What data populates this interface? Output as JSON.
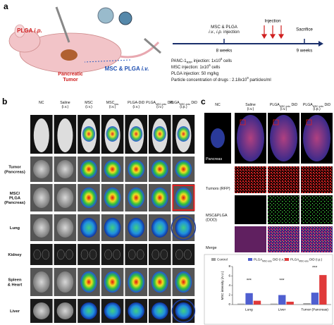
{
  "panel_a": {
    "letter": "a",
    "plga_ip": [
      [
        "PLGA ",
        {
          "t": "i.p.",
          "s": "i"
        }
      ]
    ],
    "msc_plga_iv": [
      [
        "MSC & PLGA ",
        {
          "t": "i.v.",
          "s": "i"
        }
      ]
    ],
    "tumor": [
      [
        "Pancreatic"
      ],
      [
        "Tumor"
      ]
    ],
    "timeline": {
      "treatment": [
        [
          "MSC & PLGA"
        ],
        [
          {
            "t": "i.v.",
            "s": "i"
          },
          ", ",
          {
            "t": "i.p.",
            "s": "i"
          },
          " injection"
        ]
      ],
      "start": "8 weeks",
      "injection": "Injection",
      "sacrifice": "Sacrifice",
      "end": "9 weeks"
    },
    "info": [
      [
        [
          "PANC-1",
          {
            "t": "RFP",
            "s": "sub"
          },
          " injection: 1x10",
          {
            "t": "6",
            "s": "sup"
          },
          " cells"
        ]
      ],
      [
        [
          "MSC injection: 1x10",
          {
            "t": "6",
            "s": "sup"
          },
          " cells"
        ]
      ],
      [
        [
          "PLGA injection:  50 mg/kg"
        ]
      ],
      [
        [
          "Particle concentration of drugs : 2.18x10",
          {
            "t": "9",
            "s": "sup"
          },
          " particles/ml"
        ]
      ]
    ]
  },
  "panel_b": {
    "letter": "b",
    "columns": [
      [
        [
          "NC"
        ]
      ],
      [
        [
          "Saline"
        ],
        [
          "(i.v.)"
        ]
      ],
      [
        [
          "MSC"
        ],
        [
          "(i.v.)"
        ]
      ],
      [
        [
          "MSC",
          {
            "t": "edu",
            "s": "sub"
          }
        ],
        [
          "(i.v.)"
        ]
      ],
      [
        [
          "PLGA-DiD"
        ],
        [
          "(i.v.)"
        ]
      ],
      [
        [
          "PLGA",
          {
            "t": "MSC-edu",
            "s": "sub"
          },
          " DiD"
        ],
        [
          "(i.v.)"
        ]
      ],
      [
        [
          "PLGA",
          {
            "t": "MSC-edu",
            "s": "sub"
          },
          " DiD"
        ],
        [
          "(i.p.)"
        ]
      ]
    ],
    "rows": [
      [
        [
          "Tumor"
        ],
        [
          "(Pancreas)"
        ]
      ],
      [
        [
          "MSC/"
        ],
        [
          "PLGA"
        ],
        [
          "(Pancreas)"
        ]
      ],
      [
        [
          "Lung"
        ]
      ],
      [
        [
          "Kidney"
        ]
      ],
      [
        [
          "Spleen"
        ],
        [
          "& Heart"
        ]
      ],
      [
        [
          "Liver"
        ]
      ]
    ]
  },
  "panel_c": {
    "letter": "c",
    "columns": [
      [
        [
          "NC"
        ]
      ],
      [
        [
          "Saline"
        ],
        [
          "(i.v.)"
        ]
      ],
      [
        [
          "PLGA",
          {
            "t": "MSC-edu",
            "s": "sub"
          },
          " DiD"
        ],
        [
          "(i.v.)"
        ]
      ],
      [
        [
          "PLGA",
          {
            "t": "MSC-edu",
            "s": "sub"
          },
          " DiD"
        ],
        [
          "(i.p.)"
        ]
      ]
    ],
    "rows": [
      [
        [
          "Pancreas"
        ]
      ],
      [
        [
          "Tumors (RFP)"
        ]
      ],
      [
        [
          "MSC&PLGA"
        ],
        [
          "(DOD)"
        ]
      ],
      [
        [
          "Merge"
        ]
      ]
    ],
    "chart": {
      "type": "bar",
      "y_label": "MSC intensity (A.U.)",
      "categories": [
        "Lung",
        "Liver",
        "Tumor (Pancreas)"
      ],
      "series": [
        {
          "name": [
            [
              "Control"
            ]
          ],
          "color": "#9e9e9e",
          "values": [
            0.2,
            0.2,
            0.3
          ]
        },
        {
          "name": [
            [
              "PLGA",
              {
                "t": "MSC-edu",
                "s": "sub"
              },
              " DiD (i.v.)"
            ]
          ],
          "color": "#4f5fd0",
          "values": [
            2.4,
            2.0,
            2.5
          ]
        },
        {
          "name": [
            [
              "PLGA",
              {
                "t": "MSC-edu",
                "s": "sub"
              },
              " DiD (i.p.)"
            ]
          ],
          "color": "#e03a3a",
          "values": [
            0.8,
            0.6,
            6.2
          ]
        }
      ],
      "annotations": [
        "***",
        "***",
        "***"
      ],
      "ylim": [
        0,
        8
      ],
      "yticks": [
        0,
        2,
        4,
        6,
        8
      ]
    }
  }
}
